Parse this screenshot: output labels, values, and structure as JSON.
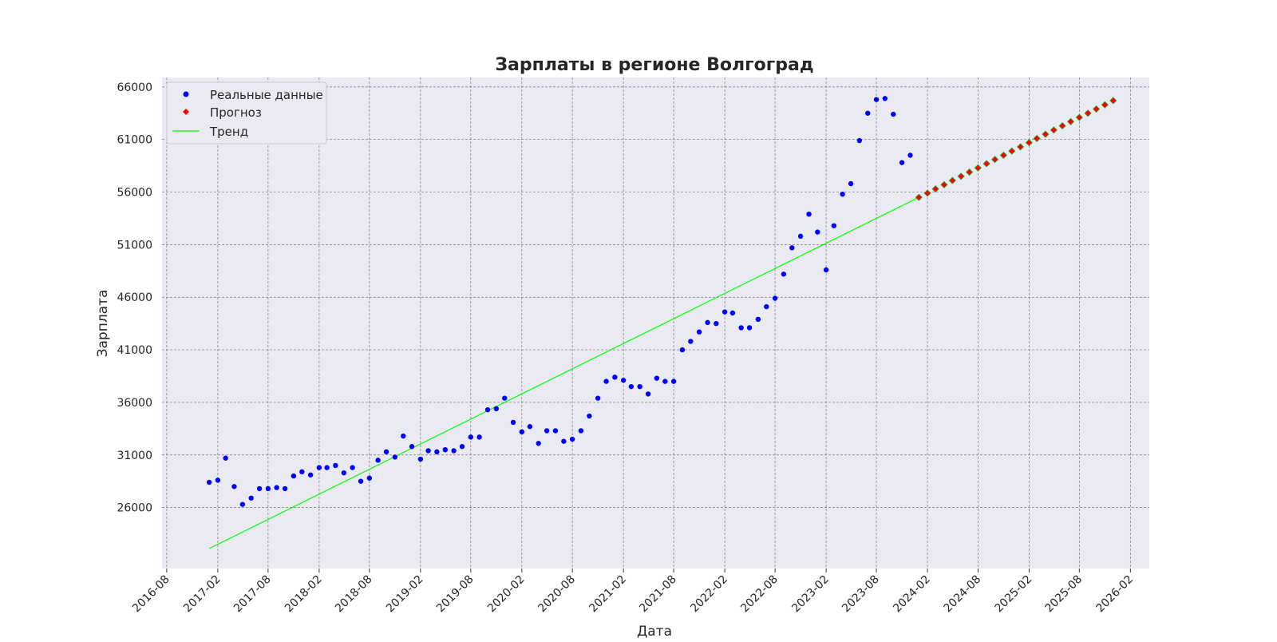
{
  "chart_data": {
    "type": "scatter",
    "title": "Зарплаты в регионе Волгоград",
    "xlabel": "Дата",
    "ylabel": "Зарплата",
    "x_axis_type": "date",
    "xlim": [
      "2016-07-15",
      "2026-04-10"
    ],
    "ylim": [
      20200,
      66900
    ],
    "xticks": [
      "2016-08",
      "2017-02",
      "2017-08",
      "2018-02",
      "2018-08",
      "2019-02",
      "2019-08",
      "2020-02",
      "2020-08",
      "2021-02",
      "2021-08",
      "2022-02",
      "2022-08",
      "2023-02",
      "2023-08",
      "2024-02",
      "2024-08",
      "2025-02",
      "2025-08",
      "2026-02"
    ],
    "yticks": [
      26000,
      31000,
      36000,
      41000,
      46000,
      51000,
      56000,
      61000,
      66000
    ],
    "grid": true,
    "legend_position": "top-left",
    "background": "#eaeaf2",
    "series": [
      {
        "name": "Реальные данные",
        "kind": "scatter",
        "marker": "circle",
        "color": "#0000ff",
        "points": [
          [
            "2017-01",
            28400
          ],
          [
            "2017-02",
            28600
          ],
          [
            "2017-03",
            30700
          ],
          [
            "2017-04",
            28000
          ],
          [
            "2017-05",
            26300
          ],
          [
            "2017-06",
            26900
          ],
          [
            "2017-07",
            27800
          ],
          [
            "2017-08",
            27800
          ],
          [
            "2017-09",
            27900
          ],
          [
            "2017-10",
            27800
          ],
          [
            "2017-11",
            29000
          ],
          [
            "2017-12",
            29400
          ],
          [
            "2018-01",
            29100
          ],
          [
            "2018-02",
            29800
          ],
          [
            "2018-03",
            29800
          ],
          [
            "2018-04",
            30000
          ],
          [
            "2018-05",
            29300
          ],
          [
            "2018-06",
            29800
          ],
          [
            "2018-07",
            28500
          ],
          [
            "2018-08",
            28800
          ],
          [
            "2018-09",
            30500
          ],
          [
            "2018-10",
            31300
          ],
          [
            "2018-11",
            30800
          ],
          [
            "2018-12",
            32800
          ],
          [
            "2019-01",
            31800
          ],
          [
            "2019-02",
            30600
          ],
          [
            "2019-03",
            31400
          ],
          [
            "2019-04",
            31300
          ],
          [
            "2019-05",
            31500
          ],
          [
            "2019-06",
            31400
          ],
          [
            "2019-07",
            31800
          ],
          [
            "2019-08",
            32700
          ],
          [
            "2019-09",
            32700
          ],
          [
            "2019-10",
            35300
          ],
          [
            "2019-11",
            35400
          ],
          [
            "2019-12",
            36400
          ],
          [
            "2020-01",
            34100
          ],
          [
            "2020-02",
            33200
          ],
          [
            "2020-03",
            33700
          ],
          [
            "2020-04",
            32100
          ],
          [
            "2020-05",
            33300
          ],
          [
            "2020-06",
            33300
          ],
          [
            "2020-07",
            32300
          ],
          [
            "2020-08",
            32500
          ],
          [
            "2020-09",
            33300
          ],
          [
            "2020-10",
            34700
          ],
          [
            "2020-11",
            36400
          ],
          [
            "2020-12",
            38000
          ],
          [
            "2021-01",
            38400
          ],
          [
            "2021-02",
            38100
          ],
          [
            "2021-03",
            37500
          ],
          [
            "2021-04",
            37500
          ],
          [
            "2021-05",
            36800
          ],
          [
            "2021-06",
            38300
          ],
          [
            "2021-07",
            38000
          ],
          [
            "2021-08",
            38000
          ],
          [
            "2021-09",
            41000
          ],
          [
            "2021-10",
            41800
          ],
          [
            "2021-11",
            42700
          ],
          [
            "2021-12",
            43600
          ],
          [
            "2022-01",
            43500
          ],
          [
            "2022-02",
            44600
          ],
          [
            "2022-03",
            44500
          ],
          [
            "2022-04",
            43100
          ],
          [
            "2022-05",
            43100
          ],
          [
            "2022-06",
            43900
          ],
          [
            "2022-07",
            45100
          ],
          [
            "2022-08",
            45900
          ],
          [
            "2022-09",
            48200
          ],
          [
            "2022-10",
            50700
          ],
          [
            "2022-11",
            51800
          ],
          [
            "2022-12",
            53900
          ],
          [
            "2023-01",
            52200
          ],
          [
            "2023-02",
            48600
          ],
          [
            "2023-03",
            52800
          ],
          [
            "2023-04",
            55800
          ],
          [
            "2023-05",
            56800
          ],
          [
            "2023-06",
            60900
          ],
          [
            "2023-07",
            63500
          ],
          [
            "2023-08",
            64800
          ],
          [
            "2023-09",
            64900
          ],
          [
            "2023-10",
            63400
          ],
          [
            "2023-11",
            58800
          ],
          [
            "2023-12",
            59500
          ]
        ]
      },
      {
        "name": "Прогноз",
        "kind": "scatter",
        "marker": "diamond",
        "color": "#ff0000",
        "edge_color": "#22aa22",
        "points": [
          [
            "2024-01",
            55500
          ],
          [
            "2024-02",
            55900
          ],
          [
            "2024-03",
            56300
          ],
          [
            "2024-04",
            56700
          ],
          [
            "2024-05",
            57100
          ],
          [
            "2024-06",
            57500
          ],
          [
            "2024-07",
            57900
          ],
          [
            "2024-08",
            58300
          ],
          [
            "2024-09",
            58700
          ],
          [
            "2024-10",
            59100
          ],
          [
            "2024-11",
            59500
          ],
          [
            "2024-12",
            59900
          ],
          [
            "2025-01",
            60300
          ],
          [
            "2025-02",
            60700
          ],
          [
            "2025-03",
            61100
          ],
          [
            "2025-04",
            61500
          ],
          [
            "2025-05",
            61900
          ],
          [
            "2025-06",
            62300
          ],
          [
            "2025-07",
            62700
          ],
          [
            "2025-08",
            63100
          ],
          [
            "2025-09",
            63500
          ],
          [
            "2025-10",
            63900
          ],
          [
            "2025-11",
            64300
          ],
          [
            "2025-12",
            64700
          ]
        ]
      },
      {
        "name": "Тренд",
        "kind": "line",
        "color": "#00ff00",
        "points": [
          [
            "2017-01",
            22100
          ],
          [
            "2024-01",
            55500
          ]
        ]
      }
    ]
  }
}
